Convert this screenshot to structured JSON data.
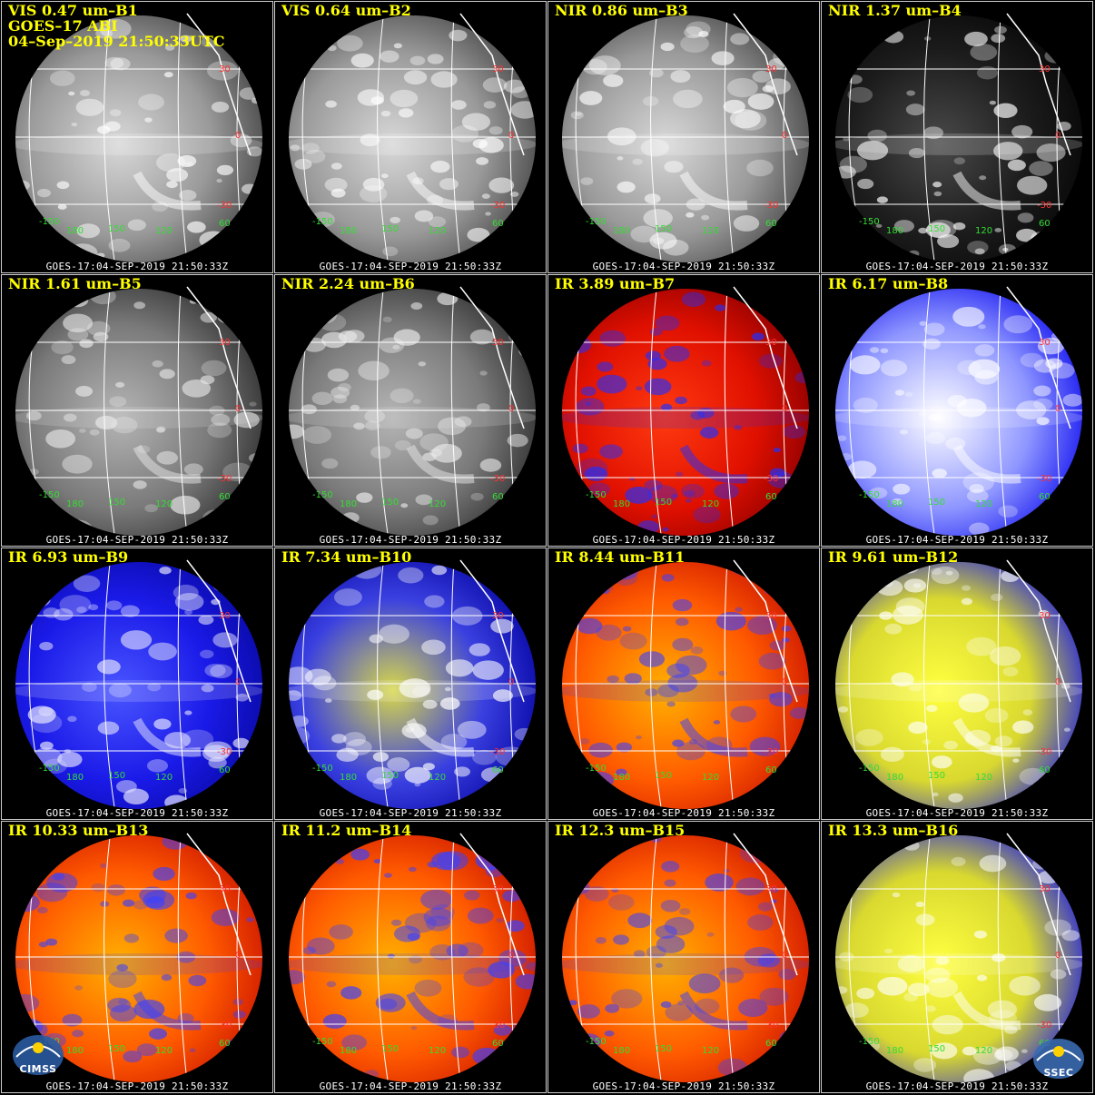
{
  "header": {
    "line2": "GOES–17 ABI",
    "line3": "04–Sep–2019 21:50:33UTC"
  },
  "footer_text": "GOES-17:04-SEP-2019  21:50:33Z",
  "lat_labels": [
    "30",
    "0",
    "-30"
  ],
  "lon_labels": [
    "-150",
    "180",
    "150",
    "120",
    "60"
  ],
  "logos": {
    "left": "CIMSS",
    "right": "SSEC"
  },
  "colors": {
    "title": "#ffff00",
    "lat_label": "#ff3030",
    "lon_label": "#33dd33",
    "grid": "#ffffff"
  },
  "panels": [
    {
      "title": "VIS 0.47 um–B1",
      "style": "gray"
    },
    {
      "title": "VIS 0.64 um–B2",
      "style": "gray"
    },
    {
      "title": "NIR 0.86 um–B3",
      "style": "gray"
    },
    {
      "title": "NIR 1.37 um–B4",
      "style": "dark"
    },
    {
      "title": "NIR 1.61 um–B5",
      "style": "gray2"
    },
    {
      "title": "NIR 2.24 um–B6",
      "style": "gray2"
    },
    {
      "title": "IR 3.89 um–B7",
      "style": "red"
    },
    {
      "title": "IR 6.17 um–B8",
      "style": "whiteblue"
    },
    {
      "title": "IR 6.93 um–B9",
      "style": "blue"
    },
    {
      "title": "IR 7.34 um–B10",
      "style": "blueyellow"
    },
    {
      "title": "IR 8.44 um–B11",
      "style": "orange"
    },
    {
      "title": "IR 9.61 um–B12",
      "style": "yellowblue"
    },
    {
      "title": "IR 10.33 um–B13",
      "style": "orange"
    },
    {
      "title": "IR 11.2 um–B14",
      "style": "orange"
    },
    {
      "title": "IR 12.3 um–B15",
      "style": "orange"
    },
    {
      "title": "IR 13.3 um–B16",
      "style": "yellowblue"
    }
  ]
}
